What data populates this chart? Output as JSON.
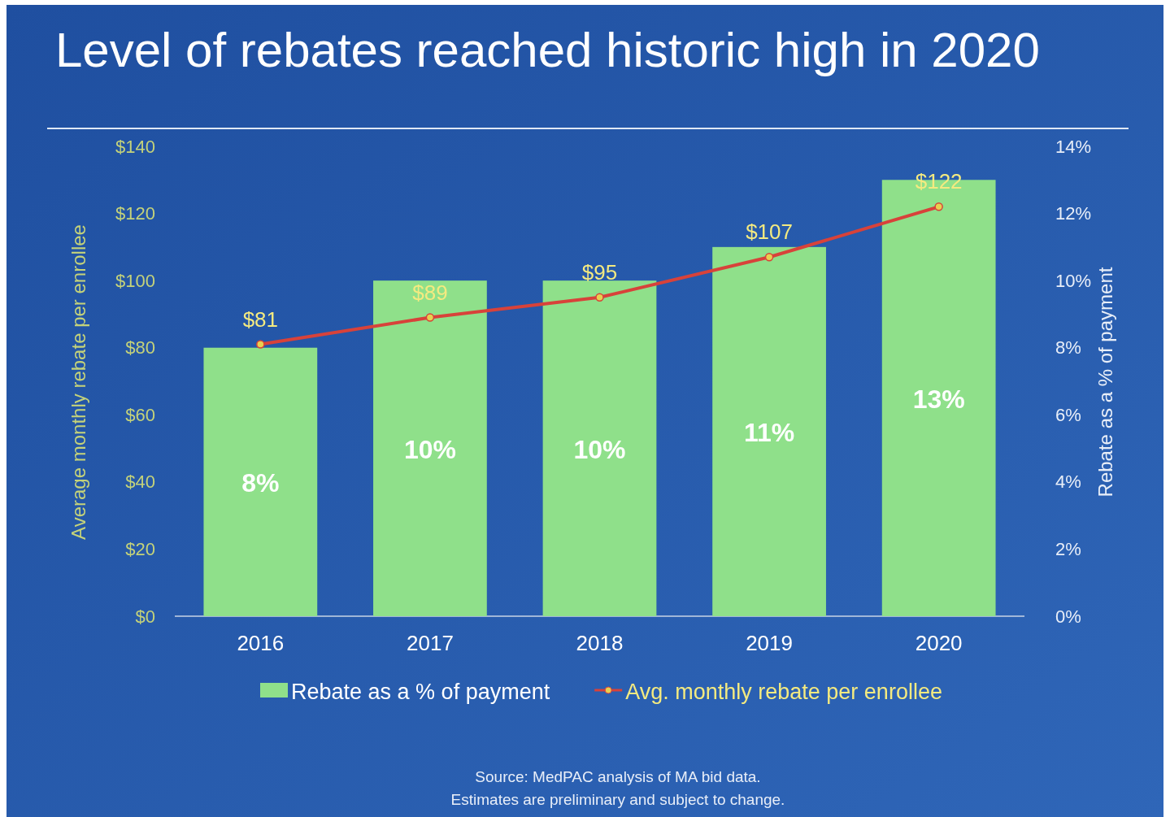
{
  "chart_data": {
    "type": "bar",
    "title": "Level of rebates reached historic high in 2020",
    "ylabel": "Average monthly rebate per enrollee",
    "y2label": "Rebate as a % of payment",
    "categories": [
      "2016",
      "2017",
      "2018",
      "2019",
      "2020"
    ],
    "series": [
      {
        "name": "Rebate as a % of payment",
        "axis": "y2",
        "color": "#8fe08a",
        "values": [
          8,
          10,
          10,
          11,
          13
        ],
        "value_labels": [
          "8%",
          "10%",
          "10%",
          "11%",
          "13%"
        ]
      },
      {
        "name": "Avg. monthly rebate per enrollee",
        "type": "line",
        "color": "#d8423a",
        "values": [
          81,
          89,
          95,
          107,
          122
        ],
        "value_labels": [
          "$81",
          "$89",
          "$95",
          "$107",
          "$122"
        ]
      }
    ],
    "ylim": [
      0,
      140
    ],
    "yticks": [
      {
        "value": 0,
        "label": "$0"
      },
      {
        "value": 20,
        "label": "$20"
      },
      {
        "value": 40,
        "label": "$40"
      },
      {
        "value": 60,
        "label": "$60"
      },
      {
        "value": 80,
        "label": "$80"
      },
      {
        "value": 100,
        "label": "$100"
      },
      {
        "value": 120,
        "label": "$120"
      },
      {
        "value": 140,
        "label": "$140"
      }
    ],
    "y2lim": [
      0,
      14
    ],
    "y2ticks": [
      {
        "value": 0,
        "label": "0%"
      },
      {
        "value": 2,
        "label": "2%"
      },
      {
        "value": 4,
        "label": "4%"
      },
      {
        "value": 6,
        "label": "6%"
      },
      {
        "value": 8,
        "label": "8%"
      },
      {
        "value": 10,
        "label": "10%"
      },
      {
        "value": 12,
        "label": "12%"
      },
      {
        "value": 14,
        "label": "14%"
      }
    ],
    "grid": false,
    "legend": "bottom",
    "marker": "circle",
    "line_style": "solid",
    "annotations": [
      "Source: MedPAC analysis of MA bid data.",
      "Estimates are preliminary and subject to change."
    ]
  }
}
